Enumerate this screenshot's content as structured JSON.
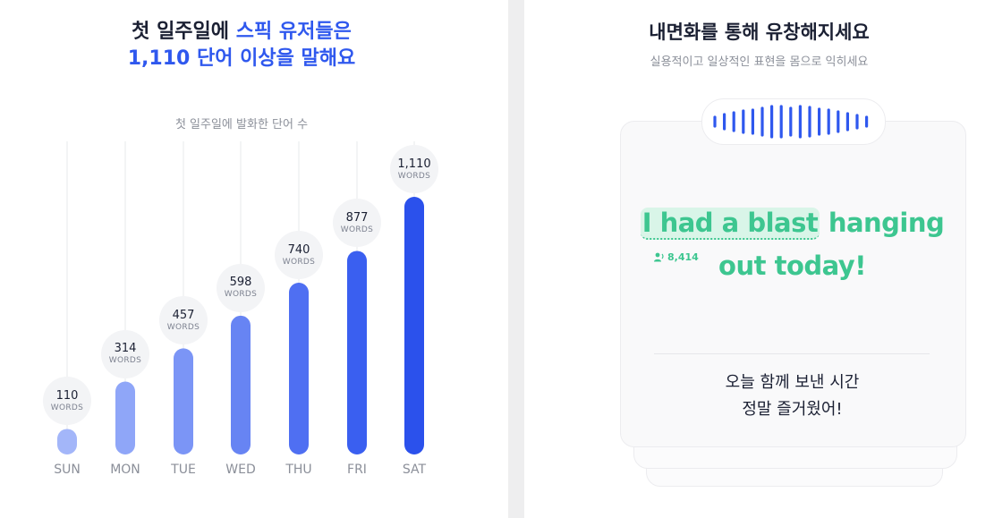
{
  "left": {
    "headline": {
      "line1_prefix": "첫 일주일에 ",
      "line1_highlight": "스픽 유저들은",
      "line2": "1,110 단어 이상을 말해요"
    },
    "chart_caption": "첫 일주일에 발화한 단어 수"
  },
  "chart_data": {
    "type": "bar",
    "categories": [
      "SUN",
      "MON",
      "TUE",
      "WED",
      "THU",
      "FRI",
      "SAT"
    ],
    "values": [
      110,
      314,
      457,
      598,
      740,
      877,
      1110
    ],
    "value_labels": [
      "110",
      "314",
      "457",
      "598",
      "740",
      "877",
      "1,110"
    ],
    "unit_label": "WORDS",
    "title": "첫 일주일에 발화한 단어 수",
    "ylim": [
      0,
      1110
    ],
    "grid": false,
    "colors": [
      "#a3b6f9",
      "#8fa6f8",
      "#7b95f6",
      "#6784f3",
      "#4f6ff2",
      "#3a5ff0",
      "#2b51ec"
    ]
  },
  "right": {
    "title": "내면화를 통해 유창해지세요",
    "subtitle": "실용적이고 일상적인 표현을 몸으로 익히세요",
    "phrase": {
      "highlight": "I had a blast",
      "rest_line1": " hanging",
      "line2": "out today!"
    },
    "listener_count": "8,414",
    "translation_line1": "오늘 함께 보낸 시간",
    "translation_line2": "정말 즐거웠어!",
    "accent_color": "#3dc690",
    "wave_color": "#2f58ee"
  }
}
